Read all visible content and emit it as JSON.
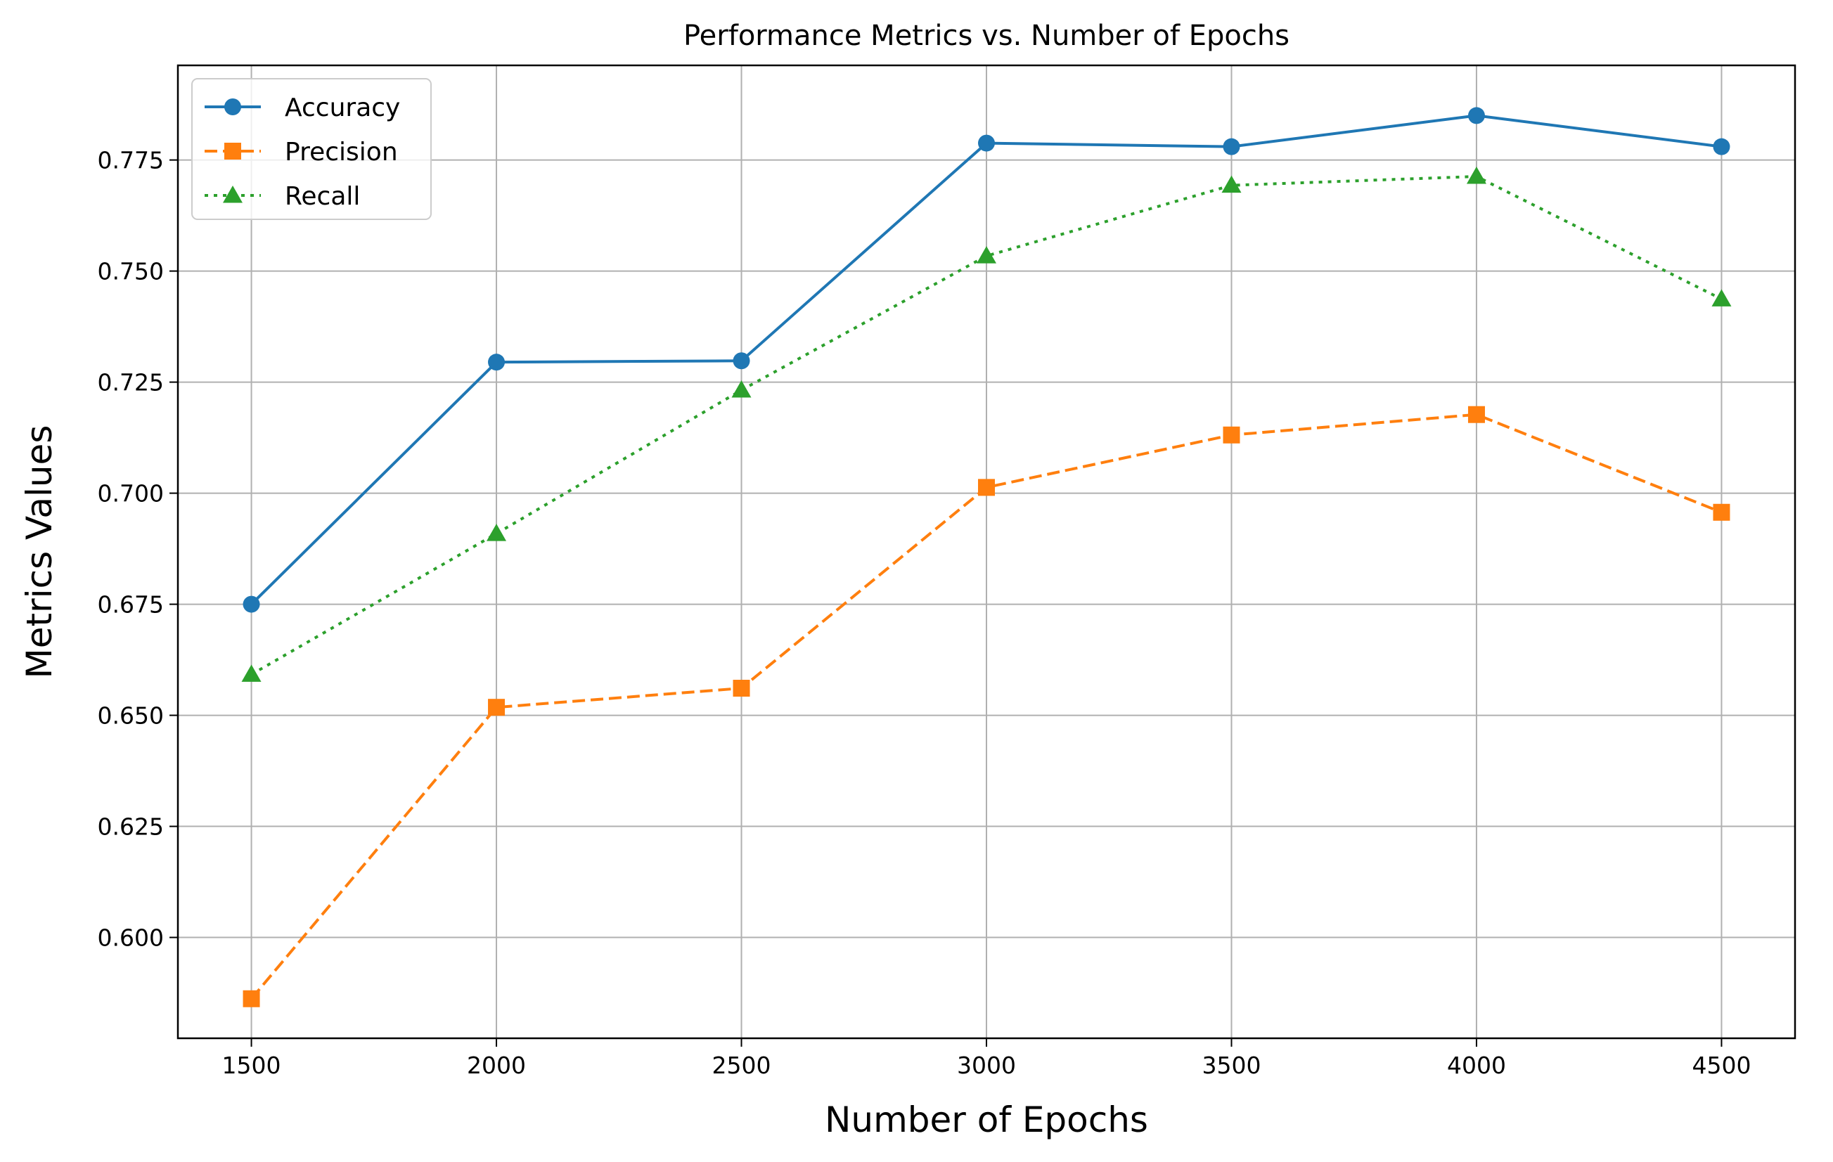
{
  "chart_data": {
    "type": "line",
    "title": "Performance Metrics vs. Number of Epochs",
    "xlabel": "Number of Epochs",
    "ylabel": "Metrics Values",
    "x": [
      1500,
      2000,
      2500,
      3000,
      3500,
      4000,
      4500
    ],
    "xticks": [
      "1500",
      "2000",
      "2500",
      "3000",
      "3500",
      "4000",
      "4500"
    ],
    "xlim": [
      1350,
      4650
    ],
    "yticks": [
      "0.600",
      "0.625",
      "0.650",
      "0.675",
      "0.700",
      "0.725",
      "0.750",
      "0.775"
    ],
    "ytick_values": [
      0.6,
      0.625,
      0.65,
      0.675,
      0.7,
      0.725,
      0.75,
      0.775
    ],
    "ylim": [
      0.5773,
      0.7963
    ],
    "grid": true,
    "legend_position": "top-left",
    "series": [
      {
        "name": "Accuracy",
        "values": [
          0.675,
          0.7295,
          0.7298,
          0.7788,
          0.778,
          0.785,
          0.778
        ],
        "color": "#1f77b4",
        "marker": "circle",
        "line_style": "solid"
      },
      {
        "name": "Precision",
        "values": [
          0.5862,
          0.6518,
          0.6561,
          0.7013,
          0.7131,
          0.7177,
          0.6957
        ],
        "color": "#ff7f0e",
        "marker": "square",
        "line_style": "dashed"
      },
      {
        "name": "Recall",
        "values": [
          0.6592,
          0.6909,
          0.7232,
          0.7534,
          0.7693,
          0.7713,
          0.7437
        ],
        "color": "#2ca02c",
        "marker": "triangle",
        "line_style": "dotted"
      }
    ]
  }
}
